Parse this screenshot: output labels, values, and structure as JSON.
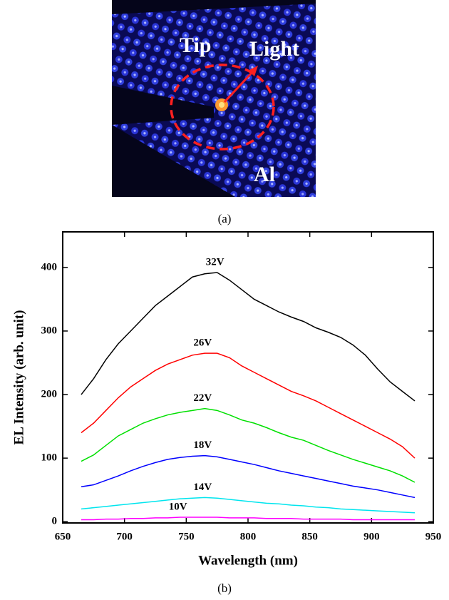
{
  "figure_a": {
    "labels": [
      "Tip",
      "Light",
      "Al"
    ],
    "caption": "(a)"
  },
  "chart_data": {
    "type": "line",
    "caption": "(b)",
    "x_label": "Wavelength (nm)",
    "y_label": "EL Intensity (arb. unit)",
    "x": [
      665,
      675,
      685,
      695,
      705,
      715,
      725,
      735,
      745,
      755,
      765,
      775,
      785,
      795,
      805,
      815,
      825,
      835,
      845,
      855,
      865,
      875,
      885,
      895,
      905,
      915,
      925,
      935
    ],
    "series": [
      {
        "name": "32V",
        "color": "#000000",
        "values": [
          200,
          225,
          255,
          280,
          300,
          320,
          340,
          355,
          370,
          385,
          390,
          392,
          380,
          365,
          350,
          340,
          330,
          322,
          315,
          305,
          298,
          290,
          278,
          262,
          240,
          220,
          205,
          190
        ]
      },
      {
        "name": "26V",
        "color": "#ff0000",
        "values": [
          140,
          155,
          175,
          195,
          212,
          225,
          238,
          248,
          255,
          262,
          265,
          265,
          258,
          245,
          235,
          225,
          215,
          205,
          198,
          190,
          180,
          170,
          160,
          150,
          140,
          130,
          118,
          100
        ]
      },
      {
        "name": "22V",
        "color": "#00e000",
        "values": [
          95,
          105,
          120,
          135,
          145,
          155,
          162,
          168,
          172,
          175,
          178,
          175,
          168,
          160,
          155,
          148,
          140,
          133,
          128,
          120,
          112,
          105,
          98,
          92,
          86,
          80,
          72,
          62
        ]
      },
      {
        "name": "18V",
        "color": "#0000ff",
        "values": [
          55,
          58,
          65,
          72,
          80,
          87,
          93,
          98,
          101,
          103,
          104,
          102,
          98,
          94,
          90,
          85,
          80,
          76,
          72,
          68,
          64,
          60,
          56,
          53,
          50,
          46,
          42,
          38
        ]
      },
      {
        "name": "14V",
        "color": "#00e5ee",
        "values": [
          20,
          22,
          24,
          26,
          28,
          30,
          32,
          34,
          36,
          37,
          38,
          37,
          35,
          33,
          31,
          29,
          28,
          26,
          25,
          23,
          22,
          20,
          19,
          18,
          17,
          16,
          15,
          14
        ]
      },
      {
        "name": "10V",
        "color": "#ff00ff",
        "values": [
          3,
          3,
          4,
          4,
          5,
          5,
          6,
          6,
          7,
          7,
          7,
          7,
          6,
          6,
          6,
          5,
          5,
          5,
          4,
          4,
          4,
          4,
          3,
          3,
          3,
          3,
          3,
          3
        ]
      }
    ],
    "xlim": [
      650,
      950
    ],
    "xticks": [
      650,
      700,
      750,
      800,
      850,
      900,
      950
    ],
    "ylim": [
      -2,
      456
    ],
    "yticks": [
      0,
      100,
      200,
      300,
      400
    ]
  }
}
